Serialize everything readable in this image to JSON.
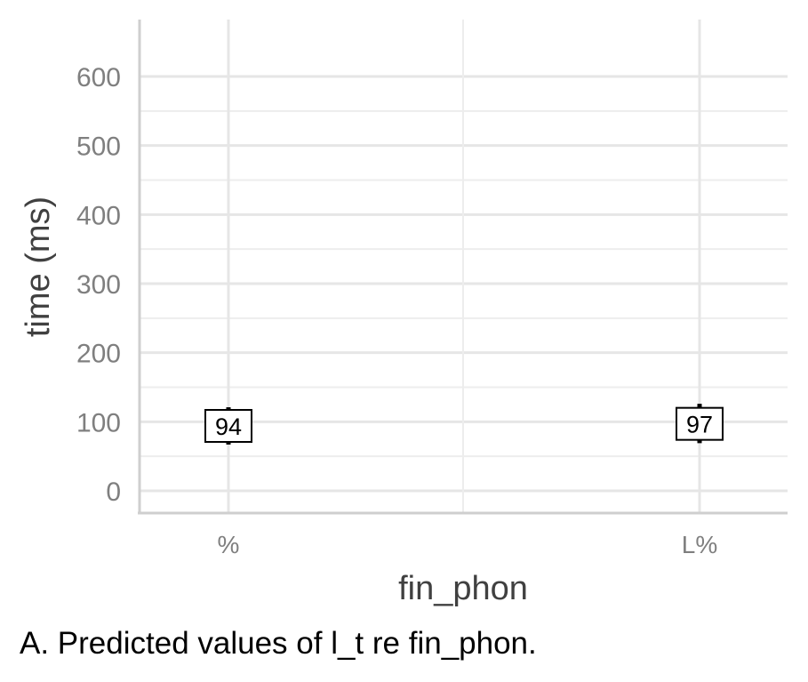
{
  "chart_data": {
    "type": "scatter",
    "xlabel": "fin_phon",
    "ylabel": "time (ms)",
    "caption": "A. Predicted values of l_t re fin_phon.",
    "categories": [
      "%",
      "L%"
    ],
    "points": [
      {
        "category": "%",
        "value": 94,
        "label": "94",
        "ci_low": 67,
        "ci_high": 121
      },
      {
        "category": "L%",
        "value": 97,
        "label": "97",
        "ci_low": 69,
        "ci_high": 126
      }
    ],
    "yticks": [
      0,
      100,
      200,
      300,
      400,
      500,
      600
    ],
    "ylim": [
      -30,
      680
    ],
    "grid": true,
    "legend": "none"
  }
}
